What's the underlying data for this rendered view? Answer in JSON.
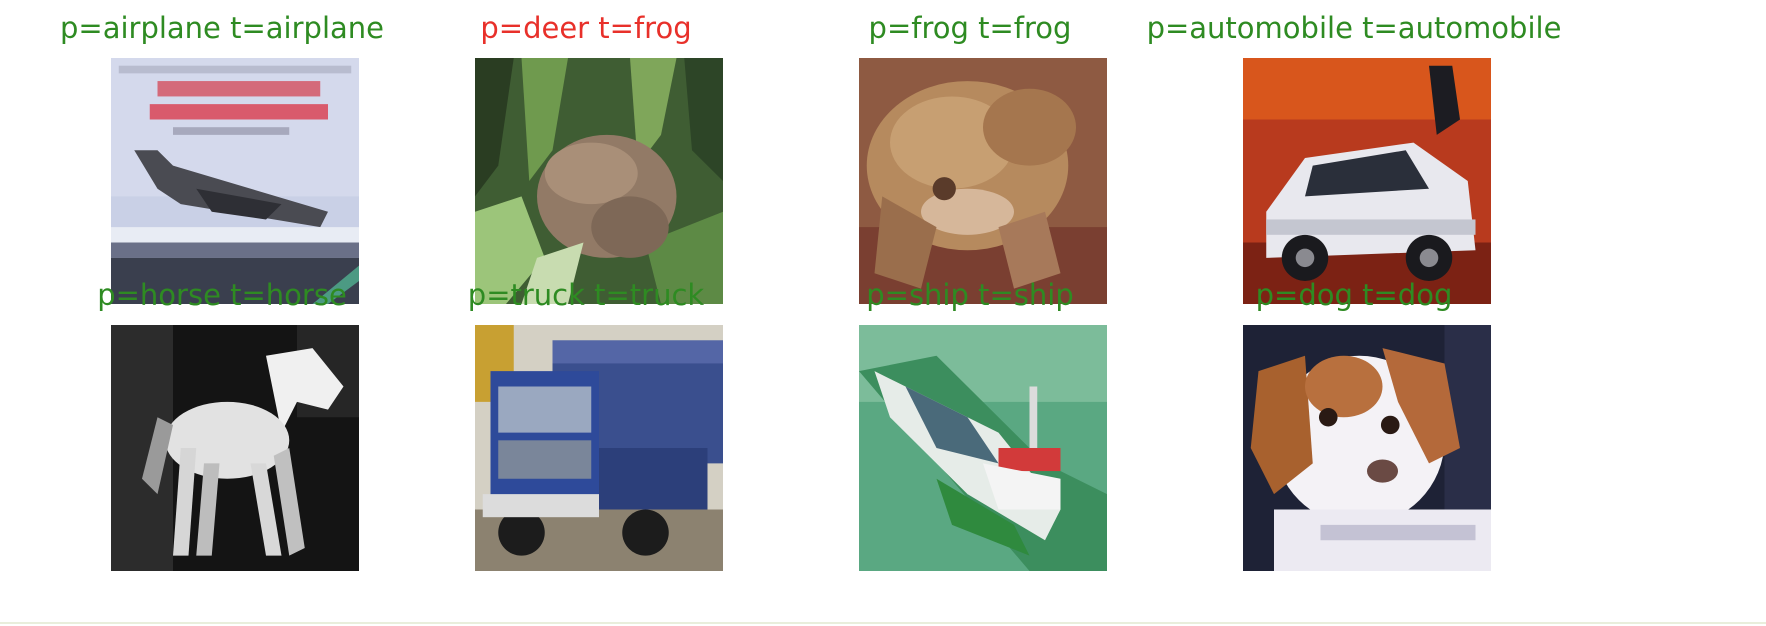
{
  "cells": [
    {
      "title": "p=airplane  t=airplane",
      "status": "correct",
      "icon": "airplane-photo"
    },
    {
      "title": "p=deer  t=frog",
      "status": "wrong",
      "icon": "frog-photo"
    },
    {
      "title": "p=frog  t=frog",
      "status": "correct",
      "icon": "frog-photo"
    },
    {
      "title": "p=automobile  t=automobile",
      "status": "correct",
      "icon": "car-photo"
    },
    {
      "title": "p=horse  t=horse",
      "status": "correct",
      "icon": "horse-photo"
    },
    {
      "title": "p=truck  t=truck",
      "status": "correct",
      "icon": "truck-photo"
    },
    {
      "title": "p=ship  t=ship",
      "status": "correct",
      "icon": "ship-photo"
    },
    {
      "title": "p=dog  t=dog",
      "status": "correct",
      "icon": "dog-photo"
    }
  ],
  "colors": {
    "correct": "#2e8b22",
    "wrong": "#e8302a"
  }
}
